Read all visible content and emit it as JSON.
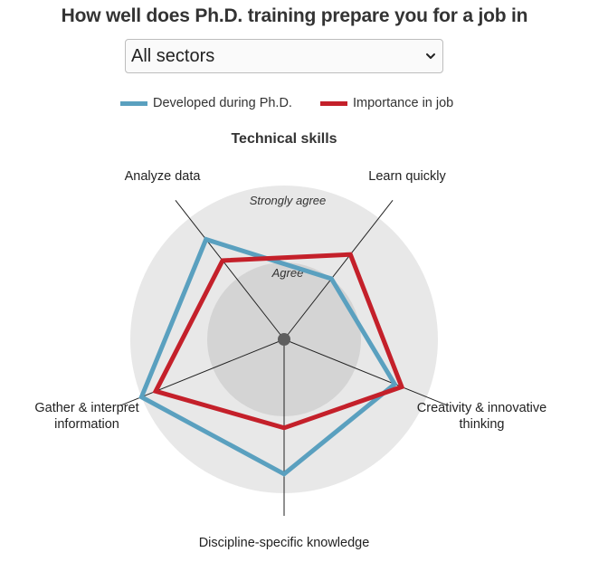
{
  "header": {
    "title": "How well does Ph.D. training prepare you for a job in"
  },
  "sector_select": {
    "value": "All sectors"
  },
  "colors": {
    "developed": "#5aa0bf",
    "importance": "#c4202a",
    "outer_ring": "#e8e8e8",
    "inner_ring": "#d4d4d4"
  },
  "chart_data": {
    "type": "radar",
    "title": "Technical skills",
    "legend_position": "top",
    "axes": [
      "Learn quickly",
      "Creativity & innovative thinking",
      "Discipline-specific knowledge",
      "Gather & interpret information",
      "Analyze data"
    ],
    "axis_label_lines": [
      [
        "Learn quickly"
      ],
      [
        "Creativity & innovative",
        "thinking"
      ],
      [
        "Discipline-specific knowledge"
      ],
      [
        "Gather & interpret",
        "information"
      ],
      [
        "Analyze data"
      ]
    ],
    "rings": [
      {
        "label": "Agree",
        "value": 1
      },
      {
        "label": "Strongly agree",
        "value": 2
      }
    ],
    "range": [
      0,
      2
    ],
    "series": [
      {
        "name": "Developed during Ph.D.",
        "values": [
          1.0,
          1.55,
          1.75,
          2.0,
          1.65
        ]
      },
      {
        "name": "Importance in job",
        "values": [
          1.4,
          1.65,
          1.15,
          1.8,
          1.3
        ]
      }
    ]
  }
}
